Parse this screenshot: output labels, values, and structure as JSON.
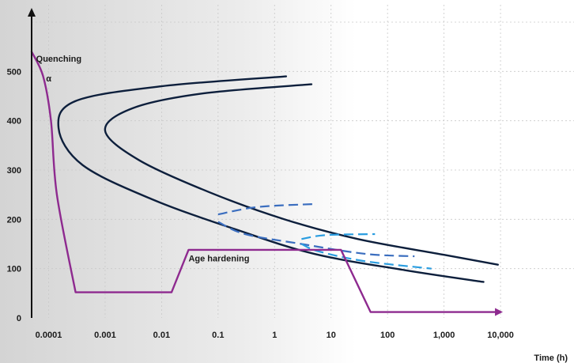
{
  "chart_data": {
    "type": "line",
    "title": "",
    "xlabel": "Time (h)",
    "ylabel": "",
    "x_scale": "log",
    "xlim": [
      5e-05,
      200000
    ],
    "ylim": [
      0,
      600
    ],
    "grid": true,
    "x_ticks": [
      {
        "value": 0.0001,
        "label": "0.0001"
      },
      {
        "value": 0.001,
        "label": "0.001"
      },
      {
        "value": 0.01,
        "label": "0.01"
      },
      {
        "value": 0.1,
        "label": "0.1"
      },
      {
        "value": 1,
        "label": "1"
      },
      {
        "value": 10,
        "label": "10"
      },
      {
        "value": 100,
        "label": "100"
      },
      {
        "value": 1000,
        "label": "1,000"
      },
      {
        "value": 10000,
        "label": "10,000"
      }
    ],
    "y_ticks": [
      {
        "value": 0,
        "label": "0"
      },
      {
        "value": 100,
        "label": "100"
      },
      {
        "value": 200,
        "label": "200"
      },
      {
        "value": 300,
        "label": "300"
      },
      {
        "value": 400,
        "label": "400"
      },
      {
        "value": 500,
        "label": "500"
      }
    ],
    "annotations": [
      {
        "text": "Quenching",
        "x": 6e-05,
        "y": 520
      },
      {
        "text": "α",
        "x": 9e-05,
        "y": 480
      },
      {
        "text": "Age hardening",
        "x": 0.03,
        "y": 115
      }
    ],
    "series": [
      {
        "color": "#0d1f3c",
        "style": "solid",
        "points": [
          [
            1.6,
            490
          ],
          [
            0.01,
            470
          ],
          [
            0.0003,
            440
          ],
          [
            0.00015,
            385
          ],
          [
            0.0004,
            310
          ],
          [
            0.007,
            240
          ],
          [
            0.2,
            180
          ],
          [
            5,
            130
          ],
          [
            200,
            97
          ],
          [
            5000,
            73
          ]
        ]
      },
      {
        "color": "#0d1f3c",
        "style": "solid",
        "points": [
          [
            4.5,
            474
          ],
          [
            0.05,
            455
          ],
          [
            0.003,
            425
          ],
          [
            0.001,
            380
          ],
          [
            0.004,
            320
          ],
          [
            0.07,
            255
          ],
          [
            1.5,
            200
          ],
          [
            30,
            160
          ],
          [
            1000,
            128
          ],
          [
            9000,
            108
          ]
        ]
      },
      {
        "color": "#3b6ebf",
        "style": "dashed",
        "points": [
          [
            0.1,
            210
          ],
          [
            0.5,
            225
          ],
          [
            5,
            231
          ]
        ]
      },
      {
        "color": "#3b6ebf",
        "style": "dashed",
        "points": [
          [
            0.1,
            195
          ],
          [
            0.3,
            170
          ],
          [
            3,
            150
          ],
          [
            40,
            130
          ],
          [
            300,
            125
          ]
        ]
      },
      {
        "color": "#2a9de0",
        "style": "dashed",
        "points": [
          [
            3,
            160
          ],
          [
            8,
            168
          ],
          [
            60,
            170
          ]
        ]
      },
      {
        "color": "#2a9de0",
        "style": "dashed",
        "points": [
          [
            3,
            150
          ],
          [
            6,
            135
          ],
          [
            40,
            115
          ],
          [
            600,
            100
          ]
        ]
      },
      {
        "color": "#8e2a8f",
        "style": "solid",
        "arrow": true,
        "points": [
          [
            5e-05,
            540
          ],
          [
            8e-05,
            490
          ],
          [
            0.00011,
            400
          ],
          [
            0.00014,
            250
          ],
          [
            0.0003,
            52
          ],
          [
            0.015,
            52
          ],
          [
            0.03,
            138
          ],
          [
            15,
            138
          ],
          [
            50,
            12
          ],
          [
            10000,
            12
          ]
        ]
      }
    ]
  }
}
